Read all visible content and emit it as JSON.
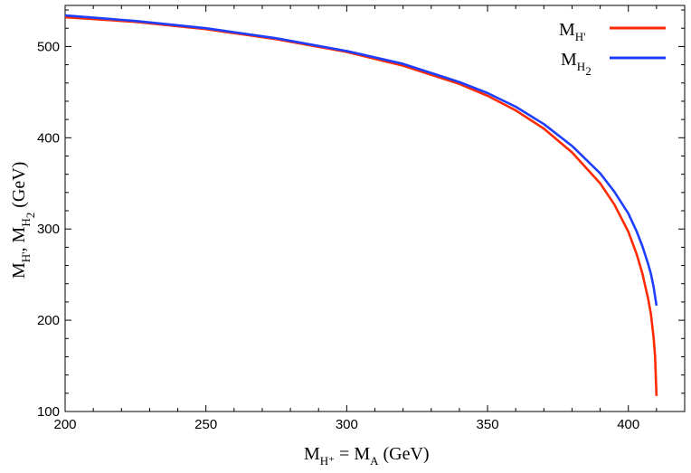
{
  "chart_data": {
    "type": "line",
    "xlabel": {
      "main1": "M",
      "sub1": "H⁺",
      "mid": " = M",
      "sub2": "A",
      "tail": " (GeV)"
    },
    "ylabel": {
      "main1": "M",
      "sub1": "H'",
      "sep": ",  M",
      "sub2": "H",
      "sub2sub": "2",
      "tail": " (GeV)"
    },
    "xlim": [
      200,
      420
    ],
    "ylim": [
      100,
      545
    ],
    "xticks": [
      200,
      250,
      300,
      350,
      400
    ],
    "yticks": [
      100,
      200,
      300,
      400,
      500
    ],
    "xtick_labels": [
      "200",
      "250",
      "300",
      "350",
      "400"
    ],
    "ytick_labels": [
      "100",
      "200",
      "300",
      "400",
      "500"
    ],
    "grid": false,
    "legend_position": "top-right",
    "series": [
      {
        "name": "M_H'",
        "legend": {
          "main": "M",
          "sub": "H'",
          "subsub": ""
        },
        "color": "#ff2a00",
        "x": [
          200,
          225,
          250,
          275,
          300,
          320,
          340,
          350,
          360,
          370,
          380,
          390,
          395,
          400,
          403,
          405,
          407,
          408,
          409,
          409.5,
          410
        ],
        "y": [
          532,
          527,
          519,
          508,
          494,
          479,
          459,
          446,
          430,
          410,
          384,
          350,
          327,
          297,
          272,
          251,
          224,
          207,
          180,
          160,
          117
        ]
      },
      {
        "name": "M_H2",
        "legend": {
          "main": "M",
          "sub": "H",
          "subsub": "2"
        },
        "color": "#1f3fff",
        "x": [
          200,
          225,
          250,
          275,
          300,
          320,
          340,
          350,
          360,
          370,
          380,
          390,
          395,
          400,
          403,
          405,
          407,
          408,
          409,
          410
        ],
        "y": [
          534,
          528,
          520,
          509,
          495,
          481,
          461,
          449,
          434,
          415,
          391,
          361,
          341,
          317,
          297,
          281,
          262,
          251,
          236,
          216
        ]
      }
    ]
  }
}
